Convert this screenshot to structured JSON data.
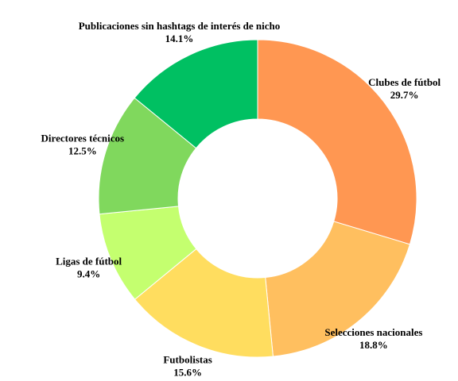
{
  "chart_data": {
    "type": "pie",
    "categories": [
      "Clubes de fútbol",
      "Selecciones nacionales",
      "Futbolistas",
      "Ligas de fútbol",
      "Directores técnicos",
      "Publicaciones sin hashtags de interés de nicho"
    ],
    "values": [
      29.7,
      18.8,
      15.6,
      9.4,
      12.5,
      14.1
    ],
    "value_labels": [
      "29.7%",
      "18.8%",
      "15.6%",
      "9.4%",
      "12.5%",
      "14.1%"
    ],
    "colors": [
      "#ff9752",
      "#ffbf5f",
      "#ffdd5f",
      "#c4ff6f",
      "#80d85d",
      "#00c062"
    ]
  }
}
